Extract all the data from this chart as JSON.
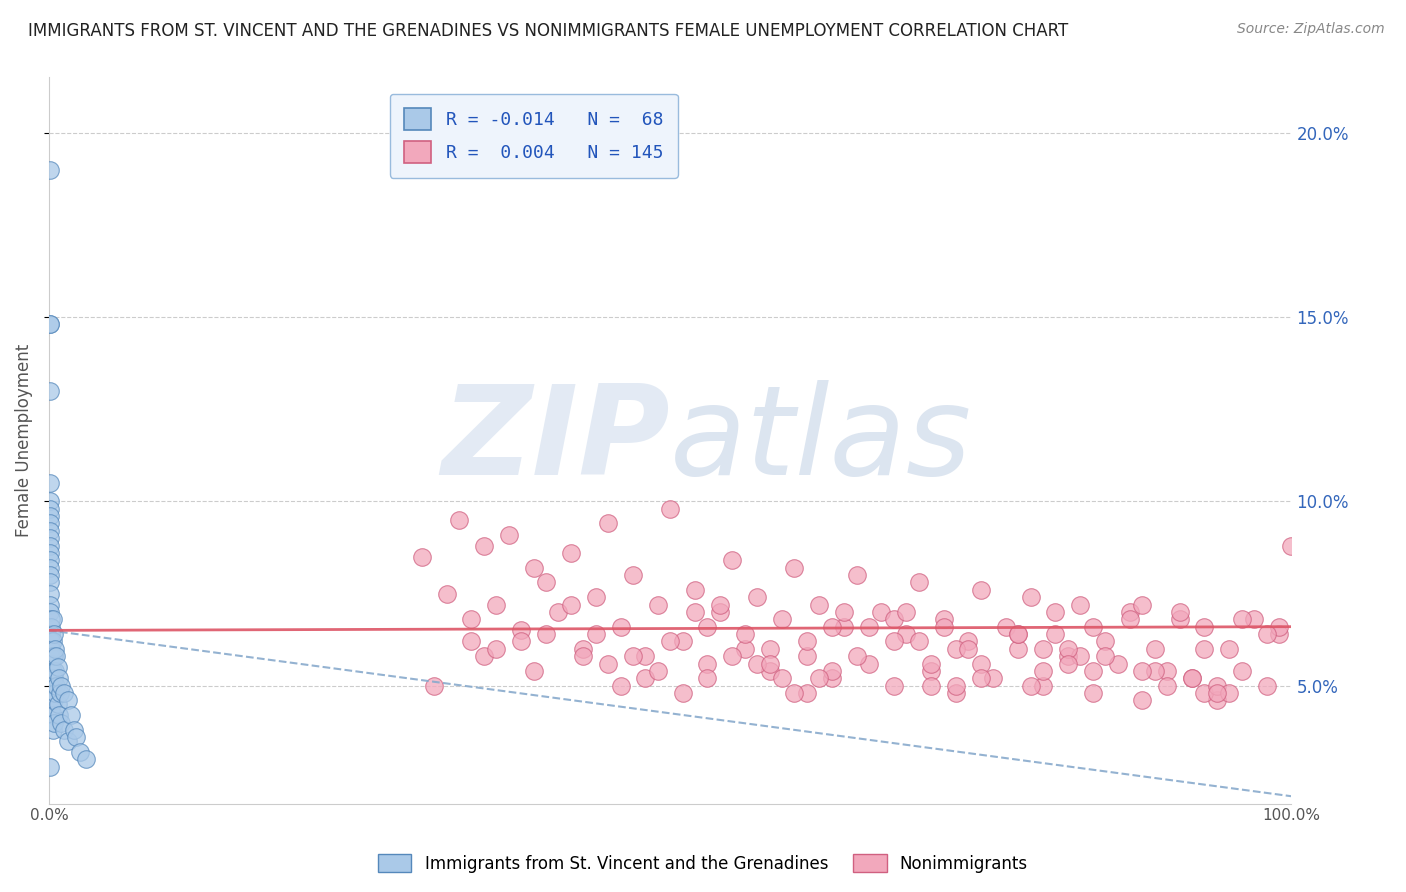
{
  "title": "IMMIGRANTS FROM ST. VINCENT AND THE GRENADINES VS NONIMMIGRANTS FEMALE UNEMPLOYMENT CORRELATION CHART",
  "source": "Source: ZipAtlas.com",
  "ylabel": "Female Unemployment",
  "xlim": [
    0.0,
    1.0
  ],
  "ylim": [
    0.018,
    0.215
  ],
  "yticks_right": [
    0.05,
    0.1,
    0.15,
    0.2
  ],
  "yticklabels_right": [
    "5.0%",
    "10.0%",
    "15.0%",
    "20.0%"
  ],
  "blue_R": -0.014,
  "blue_N": 68,
  "pink_R": 0.004,
  "pink_N": 145,
  "blue_color": "#aac9e8",
  "pink_color": "#f2a8bc",
  "blue_edge": "#5588bb",
  "pink_edge": "#d06080",
  "trend_blue_color": "#88aacc",
  "trend_pink_color": "#dd5566",
  "watermark_zip_color": "#d0dff0",
  "watermark_atlas_color": "#c8d8e8",
  "legend_box_color": "#eef4fc",
  "legend_border_color": "#99bbdd",
  "blue_scatter_x": [
    0.001,
    0.001,
    0.001,
    0.001,
    0.001,
    0.001,
    0.001,
    0.001,
    0.001,
    0.001,
    0.001,
    0.001,
    0.001,
    0.001,
    0.001,
    0.001,
    0.001,
    0.001,
    0.001,
    0.001,
    0.002,
    0.002,
    0.002,
    0.002,
    0.002,
    0.002,
    0.002,
    0.002,
    0.002,
    0.002,
    0.002,
    0.002,
    0.002,
    0.003,
    0.003,
    0.003,
    0.003,
    0.003,
    0.003,
    0.003,
    0.003,
    0.004,
    0.004,
    0.004,
    0.004,
    0.004,
    0.005,
    0.005,
    0.005,
    0.006,
    0.006,
    0.007,
    0.007,
    0.008,
    0.008,
    0.009,
    0.01,
    0.01,
    0.012,
    0.012,
    0.015,
    0.015,
    0.018,
    0.02,
    0.022,
    0.025,
    0.03,
    0.001
  ],
  "blue_scatter_y": [
    0.19,
    0.148,
    0.148,
    0.13,
    0.105,
    0.1,
    0.098,
    0.096,
    0.094,
    0.092,
    0.09,
    0.088,
    0.086,
    0.084,
    0.082,
    0.08,
    0.078,
    0.075,
    0.072,
    0.07,
    0.068,
    0.066,
    0.064,
    0.062,
    0.06,
    0.058,
    0.056,
    0.054,
    0.052,
    0.05,
    0.048,
    0.046,
    0.044,
    0.068,
    0.062,
    0.058,
    0.054,
    0.05,
    0.046,
    0.042,
    0.038,
    0.064,
    0.058,
    0.052,
    0.046,
    0.04,
    0.06,
    0.054,
    0.048,
    0.058,
    0.05,
    0.055,
    0.045,
    0.052,
    0.042,
    0.048,
    0.05,
    0.04,
    0.048,
    0.038,
    0.046,
    0.035,
    0.042,
    0.038,
    0.036,
    0.032,
    0.03,
    0.028
  ],
  "pink_scatter_x": [
    0.3,
    0.32,
    0.33,
    0.34,
    0.35,
    0.36,
    0.37,
    0.38,
    0.39,
    0.4,
    0.41,
    0.42,
    0.43,
    0.44,
    0.45,
    0.46,
    0.47,
    0.48,
    0.49,
    0.5,
    0.51,
    0.52,
    0.53,
    0.54,
    0.55,
    0.56,
    0.57,
    0.58,
    0.59,
    0.6,
    0.61,
    0.62,
    0.63,
    0.64,
    0.65,
    0.66,
    0.67,
    0.68,
    0.69,
    0.7,
    0.71,
    0.72,
    0.73,
    0.74,
    0.75,
    0.76,
    0.77,
    0.78,
    0.79,
    0.8,
    0.81,
    0.82,
    0.83,
    0.84,
    0.85,
    0.86,
    0.87,
    0.88,
    0.89,
    0.9,
    0.91,
    0.92,
    0.93,
    0.94,
    0.95,
    0.96,
    0.97,
    0.98,
    0.99,
    1.0,
    0.35,
    0.42,
    0.48,
    0.53,
    0.58,
    0.63,
    0.68,
    0.73,
    0.78,
    0.83,
    0.88,
    0.93,
    0.38,
    0.45,
    0.52,
    0.59,
    0.66,
    0.73,
    0.8,
    0.87,
    0.94,
    0.4,
    0.47,
    0.54,
    0.61,
    0.68,
    0.75,
    0.82,
    0.89,
    0.96,
    0.31,
    0.44,
    0.55,
    0.62,
    0.72,
    0.8,
    0.88,
    0.95,
    0.5,
    0.57,
    0.64,
    0.71,
    0.78,
    0.85,
    0.92,
    0.99,
    0.36,
    0.49,
    0.6,
    0.7,
    0.82,
    0.91,
    0.46,
    0.56,
    0.65,
    0.75,
    0.84,
    0.93,
    0.39,
    0.51,
    0.61,
    0.71,
    0.81,
    0.9,
    0.98,
    0.43,
    0.53,
    0.63,
    0.74,
    0.84,
    0.94,
    0.34,
    0.58,
    0.69,
    0.79
  ],
  "pink_scatter_y": [
    0.085,
    0.075,
    0.095,
    0.068,
    0.088,
    0.072,
    0.091,
    0.065,
    0.082,
    0.078,
    0.07,
    0.086,
    0.06,
    0.074,
    0.094,
    0.066,
    0.08,
    0.058,
    0.072,
    0.098,
    0.062,
    0.076,
    0.056,
    0.07,
    0.084,
    0.06,
    0.074,
    0.054,
    0.068,
    0.082,
    0.058,
    0.072,
    0.052,
    0.066,
    0.08,
    0.056,
    0.07,
    0.05,
    0.064,
    0.078,
    0.054,
    0.068,
    0.048,
    0.062,
    0.076,
    0.052,
    0.066,
    0.06,
    0.074,
    0.05,
    0.064,
    0.058,
    0.072,
    0.048,
    0.062,
    0.056,
    0.07,
    0.046,
    0.06,
    0.054,
    0.068,
    0.052,
    0.066,
    0.046,
    0.06,
    0.054,
    0.068,
    0.05,
    0.064,
    0.088,
    0.058,
    0.072,
    0.052,
    0.066,
    0.06,
    0.054,
    0.068,
    0.05,
    0.064,
    0.058,
    0.072,
    0.048,
    0.062,
    0.056,
    0.07,
    0.052,
    0.066,
    0.06,
    0.054,
    0.068,
    0.05,
    0.064,
    0.058,
    0.072,
    0.048,
    0.062,
    0.056,
    0.06,
    0.054,
    0.068,
    0.05,
    0.064,
    0.058,
    0.052,
    0.066,
    0.06,
    0.054,
    0.048,
    0.062,
    0.056,
    0.07,
    0.05,
    0.064,
    0.058,
    0.052,
    0.066,
    0.06,
    0.054,
    0.048,
    0.062,
    0.056,
    0.07,
    0.05,
    0.064,
    0.058,
    0.052,
    0.066,
    0.06,
    0.054,
    0.048,
    0.062,
    0.056,
    0.07,
    0.05,
    0.064,
    0.058,
    0.052,
    0.066,
    0.06,
    0.054,
    0.048,
    0.062,
    0.056,
    0.07,
    0.05
  ],
  "blue_trend_x0": 0.0,
  "blue_trend_y0": 0.065,
  "blue_trend_x1": 1.0,
  "blue_trend_y1": 0.02,
  "pink_trend_x0": 0.0,
  "pink_trend_y0": 0.065,
  "pink_trend_x1": 1.0,
  "pink_trend_y1": 0.066
}
